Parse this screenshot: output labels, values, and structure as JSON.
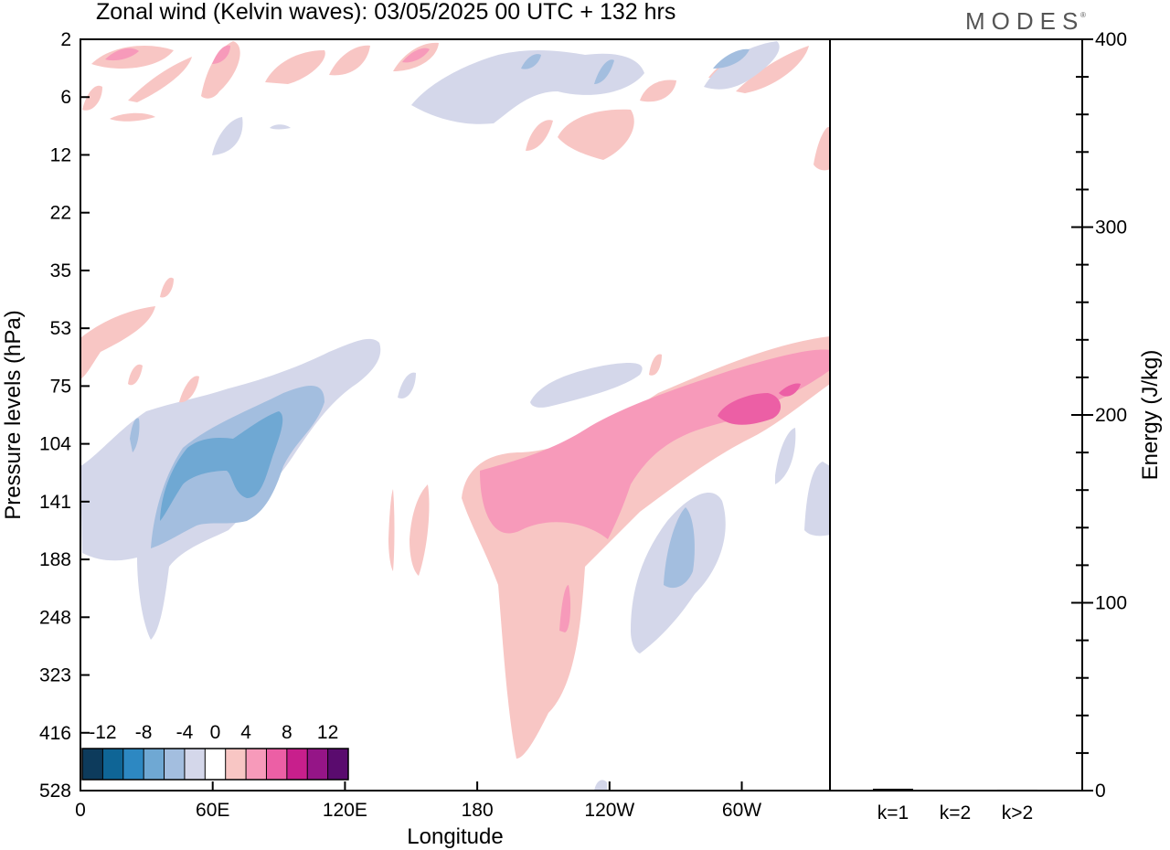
{
  "title": "Zonal wind (Kelvin waves):  03/05/2025  00 UTC  + 132 hrs",
  "logo": "MODES",
  "chart_data": [
    {
      "type": "heatmap",
      "title": "Zonal wind (Kelvin waves):  03/05/2025  00 UTC  + 132 hrs",
      "xlabel": "Longitude",
      "ylabel": "Pressure levels (hPa)",
      "x_ticks": [
        "0",
        "60E",
        "120E",
        "180",
        "120W",
        "60W"
      ],
      "x_tick_degrees": [
        0,
        60,
        120,
        180,
        240,
        300
      ],
      "xlim": [
        0,
        340
      ],
      "y_ticks": [
        "2",
        "6",
        "12",
        "22",
        "35",
        "53",
        "75",
        "104",
        "141",
        "188",
        "248",
        "323",
        "416",
        "528"
      ],
      "colorbar": {
        "labels": [
          "-12",
          "-8",
          "-4",
          "0",
          "4",
          "8",
          "12"
        ],
        "levels": [
          -14,
          -12,
          -10,
          -8,
          -6,
          -4,
          -2,
          2,
          4,
          6,
          8,
          10,
          12,
          14
        ],
        "colors": [
          "#0d3b5c",
          "#0f6596",
          "#2d88c2",
          "#6fa8d3",
          "#a3bedf",
          "#d4d7ea",
          "#ffffff",
          "#f8c6c4",
          "#f79aba",
          "#ec5fa5",
          "#c81f8c",
          "#951587",
          "#5a0b6e"
        ]
      },
      "regions": [
        {
          "name": "Weak easterly (-2 to -4) upper-troposphere band 0-120E",
          "lon": [
            0,
            135
          ],
          "level_hPa": [
            75,
            250
          ],
          "value_class": -3
        },
        {
          "name": "Easterly core (-6 to -10) near 40-90E",
          "lon": [
            35,
            95
          ],
          "level_hPa": [
            90,
            190
          ],
          "value_class": -8
        },
        {
          "name": "Westerly band rising eastward from 180 to 20W",
          "lon": [
            175,
            340
          ],
          "level_hPa": [
            70,
            520
          ],
          "value_class": 4
        },
        {
          "name": "Westerly core (6 to 8) near 60W-20W",
          "lon": [
            185,
            335
          ],
          "level_hPa": [
            80,
            160
          ],
          "value_class": 7
        },
        {
          "name": "Easterly cell (-2 to -6) near 90W-60W",
          "lon": [
            255,
            290
          ],
          "level_hPa": [
            140,
            260
          ],
          "value_class": -4
        },
        {
          "name": "Stratospheric alternating anomalies",
          "lon": [
            0,
            340
          ],
          "level_hPa": [
            2,
            12
          ],
          "value_class": 2
        }
      ]
    },
    {
      "type": "bar",
      "categories": [
        "k=1",
        "k=2",
        "k>2"
      ],
      "values": [
        1,
        0,
        0.5
      ],
      "ylabel": "Energy (J/kg)",
      "ylim": [
        0,
        400
      ],
      "y_ticks": [
        "0",
        "100",
        "200",
        "300",
        "400"
      ],
      "bar_color": "#000000"
    }
  ]
}
